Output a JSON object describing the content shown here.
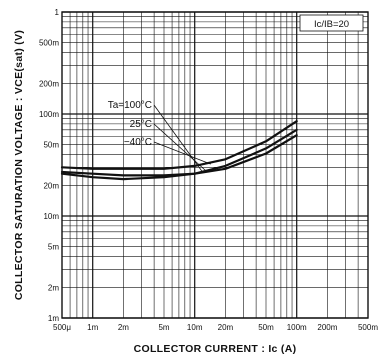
{
  "chart_data": {
    "type": "line",
    "title": "",
    "xlabel": "COLLECTOR CURRENT : Ic (A)",
    "ylabel": "COLLECTOR SATURATION VOLTAGE : VCE(sat) (V)",
    "x_scale": "log",
    "y_scale": "log",
    "xlim": [
      0.0005,
      0.5
    ],
    "ylim": [
      0.001,
      1
    ],
    "grid": true,
    "condition": "Ic/IB=20",
    "x_tick_labels": [
      {
        "value": 0.0005,
        "label": "500μ"
      },
      {
        "value": 0.001,
        "label": "1m"
      },
      {
        "value": 0.002,
        "label": "2m"
      },
      {
        "value": 0.005,
        "label": "5m"
      },
      {
        "value": 0.01,
        "label": "10m"
      },
      {
        "value": 0.02,
        "label": "20m"
      },
      {
        "value": 0.05,
        "label": "50m"
      },
      {
        "value": 0.1,
        "label": "100m"
      },
      {
        "value": 0.2,
        "label": "200m"
      },
      {
        "value": 0.5,
        "label": "500m"
      }
    ],
    "y_tick_labels": [
      {
        "value": 1,
        "label": "1"
      },
      {
        "value": 0.5,
        "label": "500m"
      },
      {
        "value": 0.2,
        "label": "200m"
      },
      {
        "value": 0.1,
        "label": "100m"
      },
      {
        "value": 0.05,
        "label": "50m"
      },
      {
        "value": 0.02,
        "label": "20m"
      },
      {
        "value": 0.01,
        "label": "10m"
      },
      {
        "value": 0.005,
        "label": "5m"
      },
      {
        "value": 0.002,
        "label": "2m"
      },
      {
        "value": 0.001,
        "label": "1m"
      }
    ],
    "series": [
      {
        "name": "Ta=100°C",
        "x": [
          0.0005,
          0.001,
          0.002,
          0.005,
          0.01,
          0.02,
          0.05,
          0.1
        ],
        "y": [
          0.027,
          0.026,
          0.025,
          0.025,
          0.026,
          0.029,
          0.041,
          0.062
        ]
      },
      {
        "name": "25°C",
        "x": [
          0.0005,
          0.001,
          0.002,
          0.005,
          0.01,
          0.02,
          0.05,
          0.1
        ],
        "y": [
          0.026,
          0.024,
          0.023,
          0.024,
          0.026,
          0.031,
          0.046,
          0.07
        ]
      },
      {
        "name": "−40°C",
        "x": [
          0.0005,
          0.001,
          0.002,
          0.005,
          0.01,
          0.02,
          0.05,
          0.1
        ],
        "y": [
          0.03,
          0.029,
          0.029,
          0.029,
          0.031,
          0.036,
          0.054,
          0.085
        ]
      }
    ]
  }
}
